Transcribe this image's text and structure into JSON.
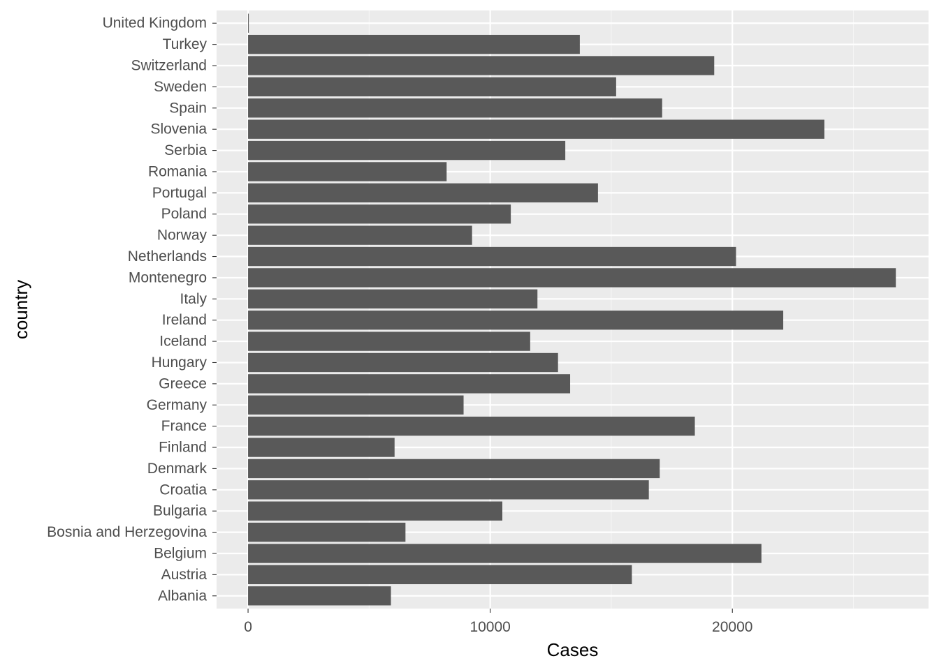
{
  "chart_data": {
    "type": "bar",
    "orientation": "horizontal",
    "xlabel": "Cases",
    "ylabel": "country",
    "xlim": [
      -1300,
      28100
    ],
    "xticks": [
      0,
      10000,
      20000
    ],
    "xtick_labels": [
      "0",
      "10000",
      "20000"
    ],
    "grid": true,
    "categories": [
      "Albania",
      "Austria",
      "Belgium",
      "Bosnia and Herzegovina",
      "Bulgaria",
      "Croatia",
      "Denmark",
      "Finland",
      "France",
      "Germany",
      "Greece",
      "Hungary",
      "Iceland",
      "Ireland",
      "Italy",
      "Montenegro",
      "Netherlands",
      "Norway",
      "Poland",
      "Portugal",
      "Romania",
      "Serbia",
      "Slovenia",
      "Spain",
      "Sweden",
      "Switzerland",
      "Turkey",
      "United Kingdom"
    ],
    "values": [
      5900,
      15850,
      21200,
      6500,
      10500,
      16550,
      17000,
      6050,
      18450,
      8900,
      13300,
      12800,
      11650,
      22100,
      11950,
      26750,
      20150,
      9250,
      10850,
      14450,
      8200,
      13100,
      23800,
      17100,
      15200,
      19250,
      13700,
      30
    ],
    "colors": {
      "bar": "#595959",
      "panel": "#ebebeb",
      "grid_major": "#ffffff",
      "grid_minor": "#f5f5f5",
      "tick": "#333333"
    }
  }
}
